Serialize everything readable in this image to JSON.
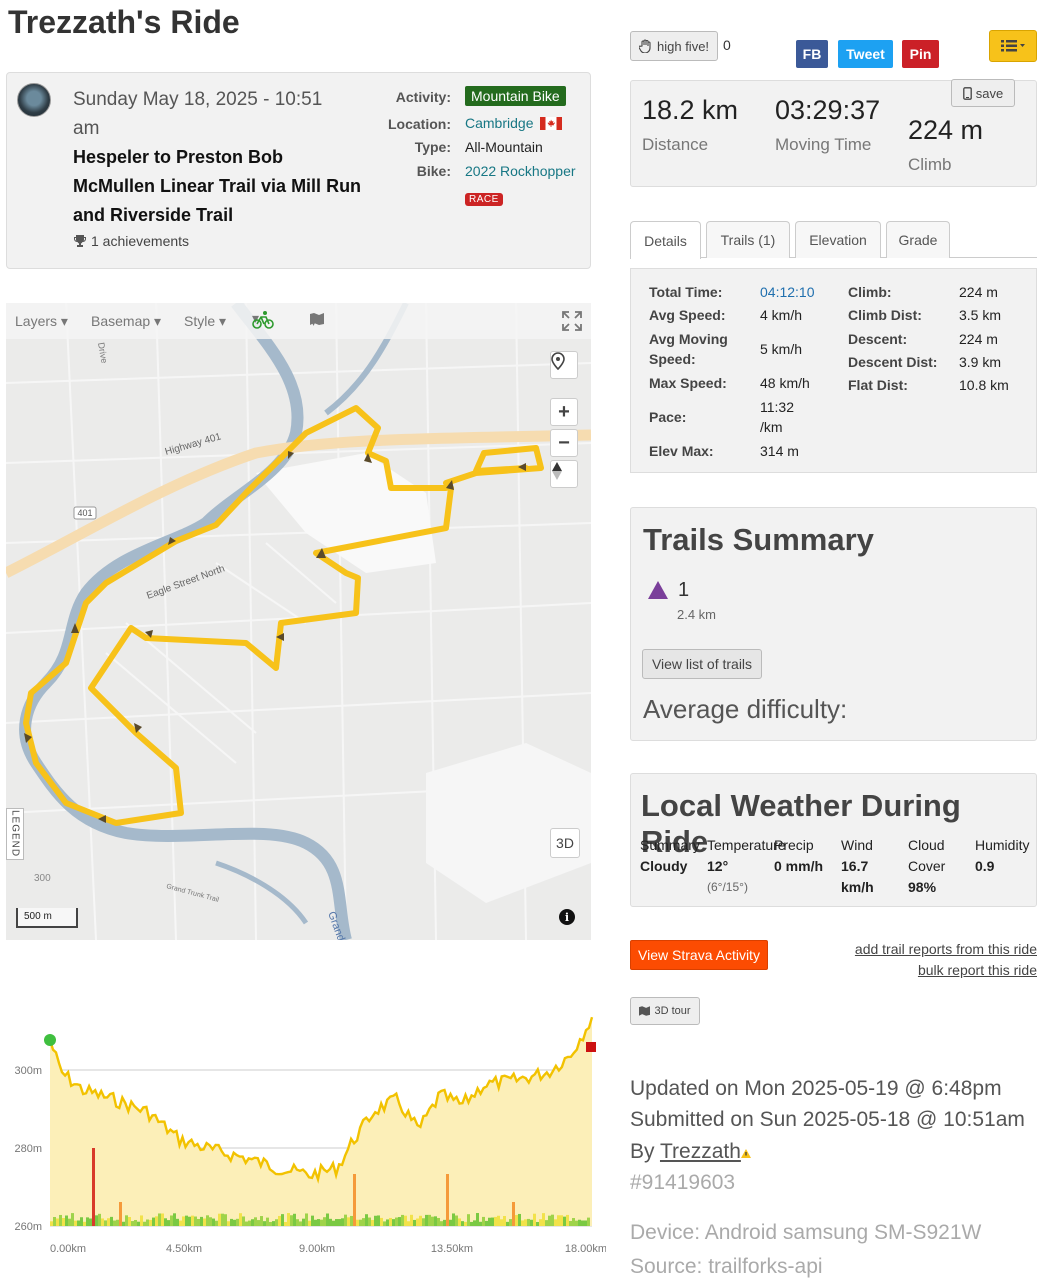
{
  "page": {
    "title": "Trezzath's Ride"
  },
  "ride": {
    "date": "Sunday May 18, 2025 - 10:51 am",
    "name": "Hespeler to Preston Bob McMullen Linear Trail via Mill Run and Riverside Trail",
    "achievements": "1 achievements",
    "activity_label": "Activity:",
    "activity": "Mountain Bike",
    "location_label": "Location:",
    "location": "Cambridge",
    "type_label": "Type:",
    "type": "All-Mountain",
    "bike_label": "Bike:",
    "bike": "2022 Rockhopper",
    "race_badge": "RACE"
  },
  "map": {
    "toolbar": {
      "layers": "Layers",
      "basemap": "Basemap",
      "style": "Style"
    },
    "labels": {
      "highway": "Highway 401",
      "route401": "401",
      "eagle": "Eagle Street North",
      "drive": "Drive",
      "grand": "Grand",
      "grand_trunk": "Grand Trunk Trail",
      "contour": "300"
    },
    "legend": "LEGEND",
    "scale": "500 m",
    "btn_3d": "3D",
    "info": "i",
    "zoom_in": "+",
    "zoom_out": "−"
  },
  "elevation": {
    "y_ticks": [
      "300m",
      "280m",
      "260m"
    ],
    "x_ticks": [
      "0.00km",
      "4.50km",
      "9.00km",
      "13.50km",
      "18.00km"
    ]
  },
  "social": {
    "high_five": "high five!",
    "high_five_count": "0",
    "fb": "FB",
    "tweet": "Tweet",
    "pin": "Pin",
    "colors": {
      "fb": "#3b5998",
      "tweet": "#1da1f2",
      "pin": "#cb2027",
      "menu": "#f7c21a"
    }
  },
  "stats": {
    "distance": "18.2 km",
    "distance_label": "Distance",
    "moving_time": "03:29:37",
    "moving_time_label": "Moving Time",
    "climb": "224 m",
    "climb_label": "Climb",
    "save": "save"
  },
  "tabs": [
    "Details",
    "Trails (1)",
    "Elevation",
    "Grade"
  ],
  "details": {
    "left": [
      {
        "label": "Total Time:",
        "value": "04:12:10"
      },
      {
        "label": "Avg Speed:",
        "value": "4 km/h"
      },
      {
        "label": "Avg Moving Speed:",
        "value": "5 km/h"
      },
      {
        "label": "Max Speed:",
        "value": "48 km/h"
      },
      {
        "label": "Pace:",
        "value": "11:32 /km"
      },
      {
        "label": "Elev Max:",
        "value": "314 m"
      }
    ],
    "right": [
      {
        "label": "Climb:",
        "value": "224 m"
      },
      {
        "label": "Climb Dist:",
        "value": "3.5 km"
      },
      {
        "label": "Descent:",
        "value": "224 m"
      },
      {
        "label": "Descent Dist:",
        "value": "3.9 km"
      },
      {
        "label": "Flat Dist:",
        "value": "10.8 km"
      }
    ]
  },
  "trails_summary": {
    "title": "Trails Summary",
    "count": "1",
    "distance": "2.4 km",
    "button": "View list of trails",
    "avg_difficulty": "Average difficulty:"
  },
  "weather": {
    "title": "Local Weather During Ride",
    "cols": [
      {
        "label": "Summary",
        "value": "Cloudy",
        "sub": ""
      },
      {
        "label": "Temperature",
        "value": "12°",
        "sub": "(6°/15°)"
      },
      {
        "label": "Precip",
        "value": "0 mm/h",
        "sub": ""
      },
      {
        "label": "Wind",
        "value": "16.7 km/h",
        "sub": ""
      },
      {
        "label": "Cloud Cover",
        "value": "98%",
        "sub": ""
      },
      {
        "label": "Humidity",
        "value": "0.9",
        "sub": ""
      }
    ]
  },
  "actions": {
    "strava": "View Strava Activity",
    "add_reports": "add trail reports from this ride",
    "bulk_report": "bulk report this ride",
    "tour": "3D tour"
  },
  "footer": {
    "updated": "Updated on Mon 2025-05-19 @ 6:48pm",
    "submitted": "Submitted on Sun 2025-05-18 @ 10:51am",
    "by_prefix": "By ",
    "user": "Trezzath",
    "id": "#91419603",
    "device": "Device: Android samsung SM-S921W",
    "source": "Source: trailforks-api"
  }
}
